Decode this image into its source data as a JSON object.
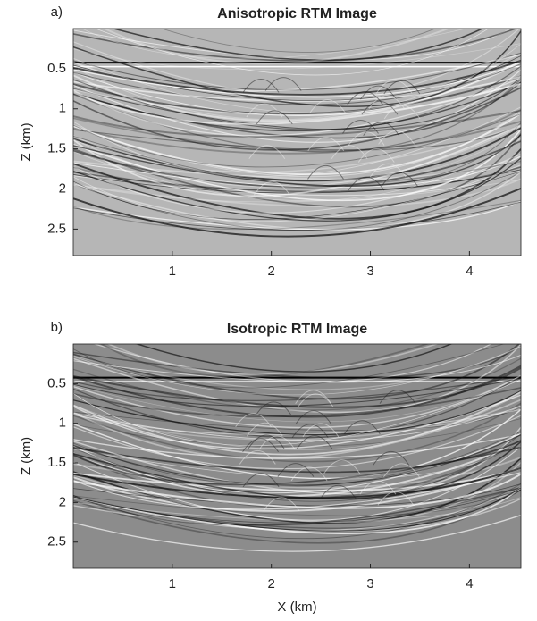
{
  "chart_data": [
    {
      "type": "image",
      "panel_label": "a)",
      "title": "Anisotropic RTM Image",
      "ylabel": "Z (km)",
      "xlim": [
        0,
        4.52
      ],
      "ylim": [
        0,
        2.83
      ],
      "y_reversed": true,
      "xticks": [
        1,
        2,
        3,
        4
      ],
      "yticks": [
        0.5,
        1,
        1.5,
        2,
        2.5
      ],
      "color": "#b6b6b6"
    },
    {
      "type": "image",
      "panel_label": "b)",
      "title": "Isotropic RTM Image",
      "ylabel": "Z (km)",
      "xlabel": "X (km)",
      "xlim": [
        0,
        4.52
      ],
      "ylim": [
        0,
        2.83
      ],
      "y_reversed": true,
      "xticks": [
        1,
        2,
        3,
        4
      ],
      "yticks": [
        0.5,
        1,
        1.5,
        2,
        2.5
      ],
      "color": "#8c8c8c"
    }
  ]
}
